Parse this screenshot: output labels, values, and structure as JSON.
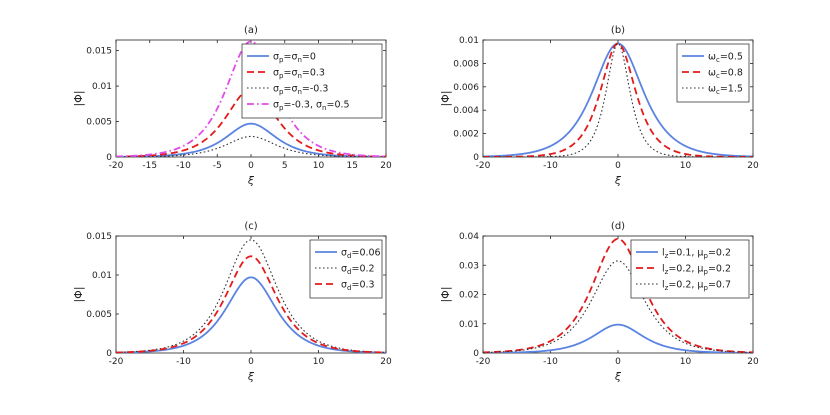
{
  "chart_data": [
    {
      "type": "line",
      "title": "(a)",
      "xlabel": "ξ",
      "ylabel": "|Φ|",
      "xlim": [
        -20,
        20
      ],
      "ylim": [
        0,
        0.0165
      ],
      "xticks": [
        -20,
        -15,
        -10,
        -5,
        0,
        5,
        10,
        15,
        20
      ],
      "yticks": [
        0,
        0.005,
        0.01,
        0.015
      ],
      "ytick_labels": [
        "0",
        "0.005",
        "0.01",
        "0.015"
      ],
      "legend_position": "top-right",
      "series": [
        {
          "label": [
            "σ",
            "p",
            "=σ",
            "n",
            "=0"
          ],
          "peak": 0.0047,
          "width": 3.3,
          "color": "#5b84e0",
          "style": "solid"
        },
        {
          "label": [
            "σ",
            "p",
            "=σ",
            "n",
            "=0.3"
          ],
          "peak": 0.0096,
          "width": 3.3,
          "color": "#e21b1b",
          "style": "dashed"
        },
        {
          "label": [
            "σ",
            "p",
            "=σ",
            "n",
            "=-0.3"
          ],
          "peak": 0.0029,
          "width": 3.3,
          "color": "#333333",
          "style": "dotted"
        },
        {
          "label": [
            "σ",
            "p",
            "=-0.3, σ",
            "n",
            "=0.5"
          ],
          "peak": 0.0163,
          "width": 3.3,
          "color": "#e04ce8",
          "style": "dashdot"
        }
      ]
    },
    {
      "type": "line",
      "title": "(b)",
      "xlabel": "ξ",
      "ylabel": "|Φ|",
      "xlim": [
        -20,
        20
      ],
      "ylim": [
        0,
        0.01
      ],
      "xticks": [
        -20,
        -10,
        0,
        10,
        20
      ],
      "yticks": [
        0,
        0.002,
        0.004,
        0.006,
        0.008,
        0.01
      ],
      "ytick_labels": [
        "0",
        "0.002",
        "0.004",
        "0.006",
        "0.008",
        "0.01"
      ],
      "legend_position": "top-right",
      "series": [
        {
          "label": [
            "ω",
            "c",
            "=0.5"
          ],
          "peak": 0.0097,
          "width": 3.3,
          "color": "#5b84e0",
          "style": "solid"
        },
        {
          "label": [
            "ω",
            "c",
            "=0.8"
          ],
          "peak": 0.0097,
          "width": 2.3,
          "color": "#e21b1b",
          "style": "dashed"
        },
        {
          "label": [
            "ω",
            "c",
            "=1.5"
          ],
          "peak": 0.0097,
          "width": 1.55,
          "color": "#333333",
          "style": "dotted"
        }
      ]
    },
    {
      "type": "line",
      "title": "(c)",
      "xlabel": "ξ",
      "ylabel": "|Φ|",
      "xlim": [
        -20,
        20
      ],
      "ylim": [
        0,
        0.015
      ],
      "xticks": [
        -20,
        -10,
        0,
        10,
        20
      ],
      "yticks": [
        0,
        0.005,
        0.01,
        0.015
      ],
      "ytick_labels": [
        "0",
        "0.005",
        "0.01",
        "0.015"
      ],
      "legend_position": "top-right",
      "series": [
        {
          "label": [
            "σ",
            "d",
            "=0.06"
          ],
          "peak": 0.0097,
          "width": 3.3,
          "color": "#5b84e0",
          "style": "solid"
        },
        {
          "label": [
            "σ",
            "d",
            "=0.2"
          ],
          "peak": 0.0145,
          "width": 3.4,
          "color": "#333333",
          "style": "dotted"
        },
        {
          "label": [
            "σ",
            "d",
            "=0.3"
          ],
          "peak": 0.0124,
          "width": 3.35,
          "color": "#e21b1b",
          "style": "dashed"
        }
      ]
    },
    {
      "type": "line",
      "title": "(d)",
      "xlabel": "ξ",
      "ylabel": "|Φ|",
      "xlim": [
        -20,
        20
      ],
      "ylim": [
        0,
        0.04
      ],
      "xticks": [
        -20,
        -10,
        0,
        10,
        20
      ],
      "yticks": [
        0,
        0.01,
        0.02,
        0.03,
        0.04
      ],
      "ytick_labels": [
        "0",
        "0.01",
        "0.02",
        "0.03",
        "0.04"
      ],
      "legend_position": "top-right",
      "series": [
        {
          "label": [
            "l",
            "z",
            "=0.1, μ",
            "p",
            "=0.2"
          ],
          "peak": 0.0097,
          "width": 3.3,
          "color": "#5b84e0",
          "style": "solid"
        },
        {
          "label": [
            "l",
            "z",
            "=0.2, μ",
            "p",
            "=0.2"
          ],
          "peak": 0.039,
          "width": 3.4,
          "color": "#e21b1b",
          "style": "dashed"
        },
        {
          "label": [
            "l",
            "z",
            "=0.2, μ",
            "p",
            "=0.7"
          ],
          "peak": 0.0315,
          "width": 3.4,
          "color": "#333333",
          "style": "dotted"
        }
      ]
    }
  ]
}
